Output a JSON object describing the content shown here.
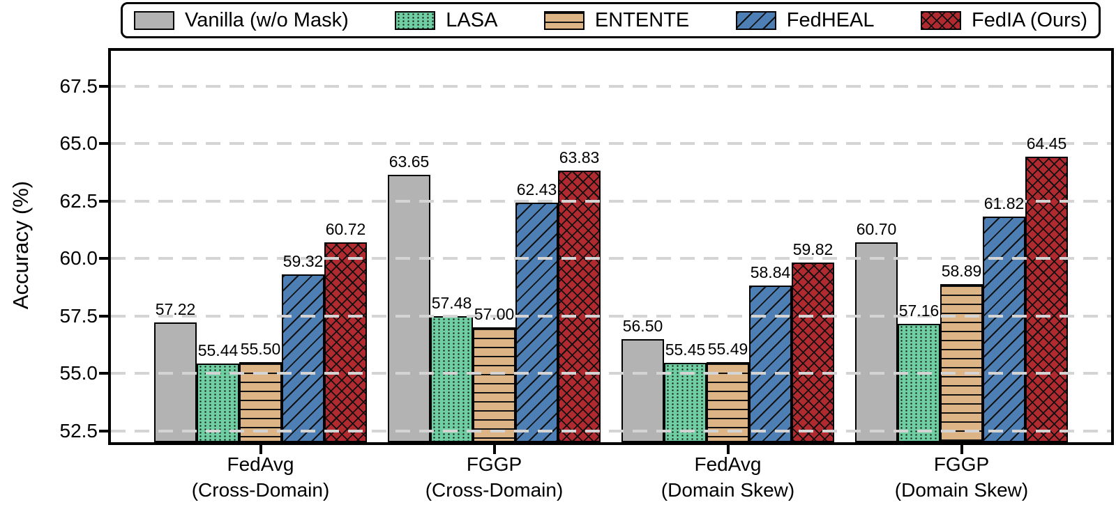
{
  "chart_data": {
    "type": "bar",
    "title": "",
    "xlabel": "",
    "ylabel": "Accuracy (%)",
    "ylim": [
      52.0,
      69.05
    ],
    "yticks": [
      52.5,
      55.0,
      57.5,
      60.0,
      62.5,
      65.0,
      67.5
    ],
    "grid": "horizontal dashed, drawn over bars",
    "legend_position": "top",
    "value_labels": "shown above each bar, 2 decimals",
    "categories": [
      {
        "line1": "FedAvg",
        "line2": "(Cross-Domain)"
      },
      {
        "line1": "FGGP",
        "line2": "(Cross-Domain)"
      },
      {
        "line1": "FedAvg",
        "line2": "(Domain Skew)"
      },
      {
        "line1": "FGGP",
        "line2": "(Domain Skew)"
      }
    ],
    "series": [
      {
        "name": "Vanilla (w/o Mask)",
        "color": "#b3b3b3",
        "hatch": "none",
        "values": [
          57.22,
          63.65,
          56.5,
          60.7
        ]
      },
      {
        "name": "LASA",
        "color": "#6fcfa2",
        "hatch": "dots",
        "values": [
          55.44,
          57.48,
          55.45,
          57.16
        ]
      },
      {
        "name": "ENTENTE",
        "color": "#ddb485",
        "hatch": "horizontal",
        "values": [
          55.5,
          57.0,
          55.49,
          58.89
        ]
      },
      {
        "name": "FedHEAL",
        "color": "#4d7fb5",
        "hatch": "diagonal",
        "values": [
          59.32,
          62.43,
          58.84,
          61.82
        ]
      },
      {
        "name": "FedIA (Ours)",
        "color": "#b02a30",
        "hatch": "crosshatch",
        "values": [
          60.72,
          63.83,
          59.82,
          64.45
        ]
      }
    ],
    "colors": {
      "bar_edge": "#000000",
      "gridline": "#d4d4d4",
      "text": "#000000",
      "background": "#ffffff"
    }
  }
}
